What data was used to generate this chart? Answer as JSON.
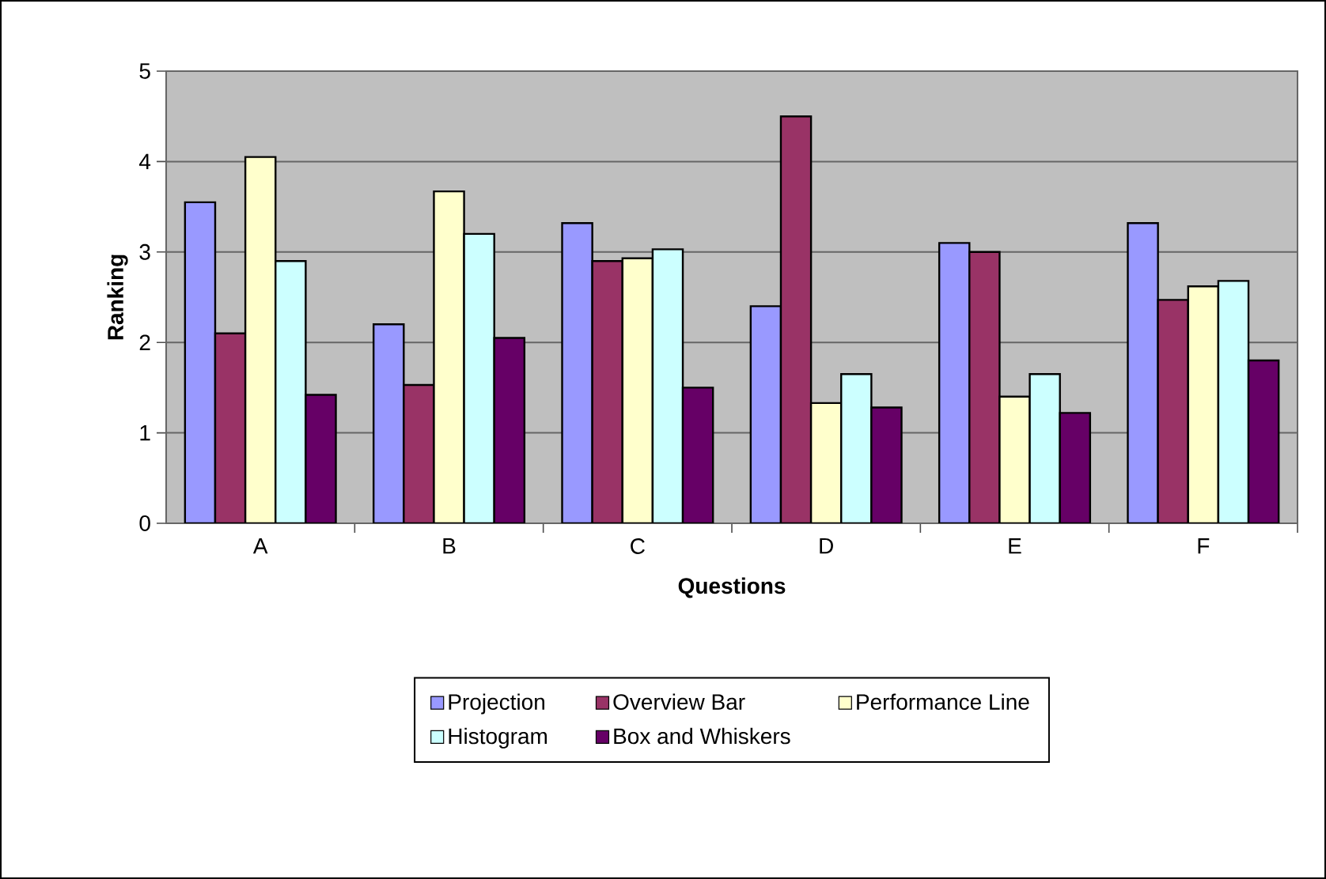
{
  "chart_data": {
    "type": "bar",
    "xlabel": "Questions",
    "ylabel": "Ranking",
    "categories": [
      "A",
      "B",
      "C",
      "D",
      "E",
      "F"
    ],
    "series": [
      {
        "name": "Projection",
        "color": "#9999ff",
        "values": [
          3.55,
          2.2,
          3.32,
          2.4,
          3.1,
          3.32
        ]
      },
      {
        "name": "Overview Bar",
        "color": "#993366",
        "values": [
          2.1,
          1.53,
          2.9,
          4.5,
          3.0,
          2.47
        ]
      },
      {
        "name": "Performance Line",
        "color": "#ffffcc",
        "values": [
          4.05,
          3.67,
          2.93,
          1.33,
          1.4,
          2.62
        ]
      },
      {
        "name": "Histogram",
        "color": "#ccffff",
        "values": [
          2.9,
          3.2,
          3.03,
          1.65,
          1.65,
          2.68
        ]
      },
      {
        "name": "Box and Whiskers",
        "color": "#660066",
        "values": [
          1.42,
          2.05,
          1.5,
          1.28,
          1.22,
          1.8
        ]
      }
    ],
    "ylim": [
      0,
      5
    ],
    "yticks": [
      0,
      1,
      2,
      3,
      4,
      5
    ],
    "grid": "y",
    "legend": "bottom"
  }
}
